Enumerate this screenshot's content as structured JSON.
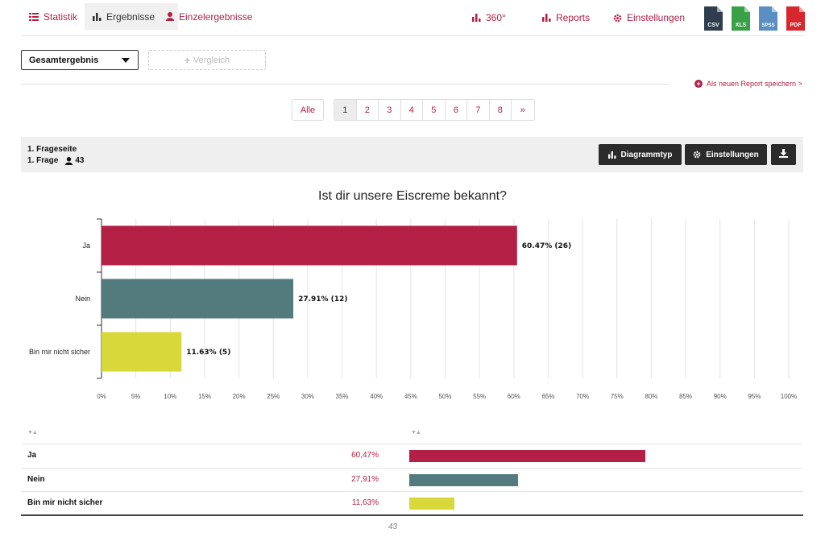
{
  "nav": {
    "tabs": [
      {
        "label": "Statistik",
        "icon": "list-icon"
      },
      {
        "label": "Ergebnisse",
        "icon": "bar-chart-icon"
      },
      {
        "label": "Einzelergebnisse",
        "icon": "user-icon"
      }
    ],
    "links": [
      {
        "label": "360°",
        "icon": "bar-chart-icon"
      },
      {
        "label": "Reports",
        "icon": "bar-chart-icon"
      },
      {
        "label": "Einstellungen",
        "icon": "gear-icon"
      }
    ],
    "exports": [
      {
        "label": "CSV",
        "color": "#2f3d4f"
      },
      {
        "label": "XLS",
        "color": "#3aa047"
      },
      {
        "label": "SPSS",
        "color": "#5b8fc3"
      },
      {
        "label": "PDF",
        "color": "#d7262d"
      }
    ]
  },
  "toolbar": {
    "select_value": "Gesamtergebnis",
    "compare_label": "Vergleich",
    "save_report": "Als neuen Report speichern >"
  },
  "pagination": {
    "all_label": "Alle",
    "pages": [
      "1",
      "2",
      "3",
      "4",
      "5",
      "6",
      "7",
      "8",
      "»"
    ],
    "current": "1"
  },
  "question": {
    "page_label": "1. Frageseite",
    "question_label": "1. Frage",
    "respondents": "43",
    "chart_type_button": "Diagrammtyp",
    "settings_button": "Einstellungen"
  },
  "chart_data": {
    "type": "bar",
    "orientation": "horizontal",
    "title": "Ist dir unsere Eiscreme bekannt?",
    "categories": [
      "Ja",
      "Nein",
      "Bin mir nicht sicher"
    ],
    "values": [
      60.47,
      27.91,
      11.63
    ],
    "counts": [
      26,
      12,
      5
    ],
    "labels": [
      "60.47% (26)",
      "27.91% (12)",
      "11.63% (5)"
    ],
    "colors": [
      "#b31f45",
      "#537a7d",
      "#d8d83a"
    ],
    "xlim": [
      0,
      100
    ],
    "xticks": [
      "0%",
      "5%",
      "10%",
      "15%",
      "20%",
      "25%",
      "30%",
      "35%",
      "40%",
      "45%",
      "50%",
      "55%",
      "60%",
      "65%",
      "70%",
      "75%",
      "80%",
      "85%",
      "90%",
      "95%",
      "100%"
    ],
    "grid": true
  },
  "table": {
    "rows": [
      {
        "label": "Ja",
        "percent": "60,47%",
        "count": "26",
        "value": 60.47,
        "color": "#b31f45"
      },
      {
        "label": "Nein",
        "percent": "27,91%",
        "count": "12",
        "value": 27.91,
        "color": "#537a7d"
      },
      {
        "label": "Bin mir nicht sicher",
        "percent": "11,63%",
        "count": "5",
        "value": 11.63,
        "color": "#d8d83a"
      }
    ],
    "total": "43",
    "sort_icon": "▼▲"
  }
}
